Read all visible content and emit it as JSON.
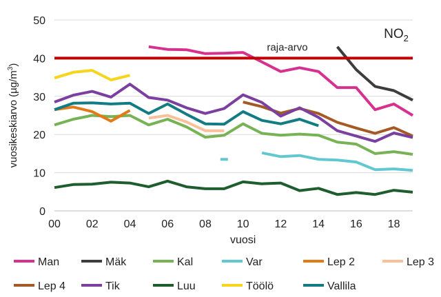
{
  "chart_data": {
    "type": "line",
    "title": "NO",
    "title_sub": "2",
    "xlabel": "vuosi",
    "ylabel": "vuosikeskiarvo (µg/m",
    "ylabel_sup": "3",
    "ylabel_end": ")",
    "xlim": [
      0,
      19
    ],
    "ylim": [
      0,
      50
    ],
    "x_ticks": [
      0,
      2,
      4,
      6,
      8,
      10,
      12,
      14,
      16,
      18
    ],
    "x_tick_labels": [
      "00",
      "02",
      "04",
      "06",
      "08",
      "10",
      "12",
      "14",
      "16",
      "18"
    ],
    "y_ticks": [
      0,
      10,
      20,
      30,
      40,
      50
    ],
    "y_tick_labels": [
      "0",
      "10",
      "20",
      "30",
      "40",
      "50"
    ],
    "limit_line": {
      "value": 40,
      "label": "raja-arvo",
      "color": "#c00000"
    },
    "series": [
      {
        "name": "Man",
        "color": "#d6318f",
        "x": [
          5,
          6,
          7,
          8,
          9,
          10,
          11,
          12,
          13,
          14,
          15,
          16,
          17,
          18,
          19
        ],
        "values": [
          43,
          42.3,
          42.2,
          41.2,
          41.3,
          41.5,
          39,
          36.5,
          37.5,
          36.5,
          32.3,
          32.3,
          26.5,
          28,
          25
        ]
      },
      {
        "name": "Mäk",
        "color": "#3d3d3d",
        "x": [
          15,
          16,
          17,
          18,
          19
        ],
        "values": [
          43,
          37,
          32.6,
          31.5,
          29
        ]
      },
      {
        "name": "Kal",
        "color": "#77b255",
        "x": [
          0,
          1,
          2,
          3,
          4,
          5,
          6,
          7,
          8,
          9,
          10,
          11,
          12,
          13,
          14,
          15,
          16,
          17,
          18,
          19
        ],
        "values": [
          22.5,
          24,
          25,
          24.7,
          25,
          22.5,
          24,
          22,
          19.3,
          19.8,
          22.8,
          20.3,
          19.8,
          20.1,
          19.8,
          18,
          17.5,
          15,
          15.5,
          14.8
        ]
      },
      {
        "name": "Var",
        "color": "#63c7d2",
        "x": [
          8.8,
          9.2,
          null,
          11,
          12,
          13,
          14,
          15,
          16,
          17,
          18,
          19
        ],
        "values": [
          13.5,
          13.5,
          null,
          15.2,
          14.2,
          14.5,
          13.5,
          13.3,
          12.8,
          10.8,
          11,
          10.6
        ]
      },
      {
        "name": "Lep 2",
        "color": "#e07b1a",
        "x": [
          0,
          1,
          2,
          3,
          4
        ],
        "values": [
          26.5,
          27.2,
          26,
          23.5,
          26.3
        ]
      },
      {
        "name": "Lep 3",
        "color": "#f8c19b",
        "x": [
          5,
          6,
          7,
          8,
          9
        ],
        "values": [
          24.3,
          25,
          23.3,
          21,
          21
        ]
      },
      {
        "name": "Lep 4",
        "color": "#a35a26",
        "x": [
          10,
          11,
          12,
          13,
          14,
          15,
          16,
          17,
          18,
          19
        ],
        "values": [
          28.5,
          27.3,
          25.6,
          26.8,
          25.5,
          23.2,
          21.7,
          20.3,
          21.8,
          19.6
        ]
      },
      {
        "name": "Tik",
        "color": "#7b3fa0",
        "x": [
          0,
          1,
          2,
          3,
          4,
          5,
          6,
          7,
          8,
          9,
          10,
          11,
          12,
          13,
          14,
          15,
          16,
          17,
          18,
          19
        ],
        "values": [
          28.5,
          30.3,
          31.3,
          29.8,
          33.2,
          29.7,
          29,
          27,
          25.5,
          26.8,
          30.4,
          28.4,
          24.8,
          27,
          24.5,
          21,
          19.6,
          18.2,
          20.4,
          19.2
        ]
      },
      {
        "name": "Luu",
        "color": "#1e5e2e",
        "x": [
          0,
          1,
          2,
          3,
          4,
          5,
          6,
          7,
          8,
          9,
          10,
          11,
          12,
          13,
          14,
          15,
          16,
          17,
          18,
          19
        ],
        "values": [
          6.1,
          6.9,
          7,
          7.5,
          7.3,
          6.3,
          7.8,
          6.3,
          5.8,
          5.8,
          7.6,
          7.1,
          7.3,
          5.3,
          5.9,
          4.3,
          4.8,
          4.3,
          5.4,
          4.9
        ]
      },
      {
        "name": "Töölö",
        "color": "#f5d51e",
        "x": [
          0,
          1,
          2,
          3,
          4
        ],
        "values": [
          34.8,
          36.3,
          36.8,
          34.3,
          35.5
        ]
      },
      {
        "name": "Vallila",
        "color": "#137c82",
        "x": [
          0,
          1,
          2,
          3,
          4,
          5,
          6,
          7,
          8,
          9,
          10,
          11,
          12,
          13,
          14
        ],
        "values": [
          26.5,
          28.2,
          28.3,
          28,
          28.2,
          25.5,
          28,
          25.3,
          22.8,
          22.7,
          26,
          23.7,
          22.8,
          24,
          22.3
        ]
      }
    ],
    "legend_rows": [
      [
        "Man",
        "Mäk",
        "Kal",
        "Var",
        "Lep 2",
        "Lep 3"
      ],
      [
        "Lep 4",
        "Tik",
        "Luu",
        "Töölö",
        "Vallila"
      ]
    ]
  }
}
